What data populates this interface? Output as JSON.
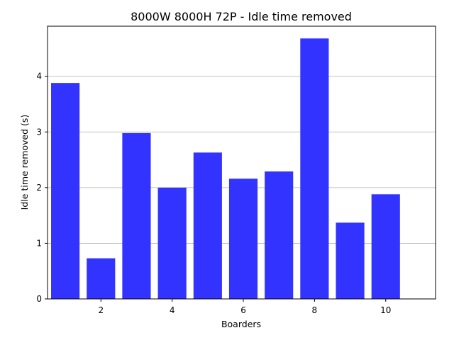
{
  "chart_data": {
    "type": "bar",
    "title": "8000W 8000H 72P - Idle time removed",
    "xlabel": "Boarders",
    "ylabel": "Idle time removed (s)",
    "x": [
      1,
      2,
      3,
      4,
      5,
      6,
      7,
      8,
      9,
      10
    ],
    "values": [
      3.88,
      0.73,
      2.98,
      2.0,
      2.63,
      2.16,
      2.29,
      4.68,
      1.37,
      1.88
    ],
    "xlim": [
      0.5,
      11.4
    ],
    "ylim": [
      0,
      4.9
    ],
    "xticks": [
      2,
      4,
      6,
      8,
      10
    ],
    "yticks": [
      0,
      1,
      2,
      3,
      4
    ],
    "bar_color": "#3333ff",
    "grid": "y-axis major"
  }
}
